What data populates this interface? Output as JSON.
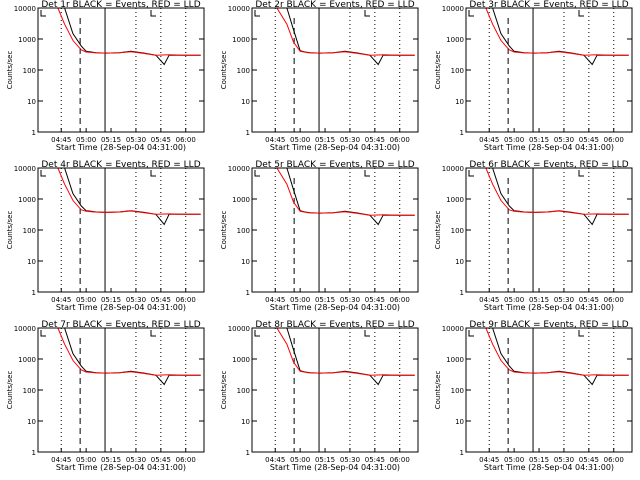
{
  "colors": {
    "events": "#000000",
    "lld": "#ff0000",
    "background": "#ffffff"
  },
  "shared": {
    "ylabel": "Counts/sec",
    "xlabel": "Start Time (28-Sep-04 04:31:00)",
    "yticks": [
      "1",
      "10",
      "100",
      "1000",
      "10000"
    ],
    "xticks": [
      "04:45",
      "05:00",
      "05:15",
      "05:30",
      "05:45",
      "06:00"
    ]
  },
  "chart_data": [
    {
      "type": "line",
      "title": "Det 1r BLACK = Events, RED = LLD",
      "panel": 1,
      "yscale": "log",
      "ylim": [
        1,
        10000
      ],
      "xlim": [
        "04:31",
        "06:11"
      ],
      "series": [
        {
          "name": "Events",
          "x": [
            "04:31",
            "04:40",
            "04:47",
            "04:52",
            "04:57",
            "05:00",
            "05:03",
            "05:06",
            "05:12",
            "05:20",
            "05:27",
            "05:35",
            "05:42",
            "05:47",
            "05:50",
            "06:00",
            "06:09"
          ],
          "y": [
            10000,
            10000,
            10000,
            1500,
            600,
            400,
            380,
            360,
            350,
            360,
            400,
            350,
            300,
            150,
            300,
            300,
            300
          ]
        },
        {
          "name": "LLD",
          "x": [
            "04:31",
            "04:43",
            "04:47",
            "04:52",
            "04:57",
            "05:00",
            "05:05",
            "05:12",
            "05:20",
            "05:27",
            "05:35",
            "05:42",
            "05:50",
            "06:00",
            "06:09"
          ],
          "y": [
            10000,
            10000,
            3000,
            900,
            450,
            380,
            360,
            350,
            360,
            390,
            340,
            300,
            310,
            300,
            300
          ]
        }
      ]
    },
    {
      "type": "line",
      "title": "Det 2r BLACK = Events, RED = LLD",
      "panel": 2,
      "yscale": "log",
      "ylim": [
        1,
        10000
      ],
      "xlim": [
        "04:31",
        "06:11"
      ],
      "series": [
        {
          "name": "Events",
          "x": [
            "04:31",
            "04:45",
            "04:52",
            "04:56",
            "05:00",
            "05:03",
            "05:06",
            "05:12",
            "05:20",
            "05:27",
            "05:35",
            "05:42",
            "05:47",
            "05:50",
            "06:00",
            "06:09"
          ],
          "y": [
            10000,
            10000,
            10000,
            2000,
            420,
            380,
            360,
            350,
            360,
            400,
            350,
            300,
            150,
            300,
            300,
            300
          ]
        },
        {
          "name": "LLD",
          "x": [
            "04:31",
            "04:46",
            "04:52",
            "04:56",
            "05:00",
            "05:05",
            "05:12",
            "05:20",
            "05:27",
            "05:35",
            "05:42",
            "05:50",
            "06:00",
            "06:09"
          ],
          "y": [
            10000,
            10000,
            3000,
            800,
            400,
            360,
            350,
            360,
            390,
            340,
            300,
            310,
            300,
            300
          ]
        }
      ]
    },
    {
      "type": "line",
      "title": "Det 3r BLACK = Events, RED = LLD",
      "panel": 3,
      "yscale": "log",
      "ylim": [
        1,
        10000
      ],
      "xlim": [
        "04:31",
        "06:11"
      ],
      "series": [
        {
          "name": "Events",
          "x": [
            "04:31",
            "04:40",
            "04:47",
            "04:52",
            "04:57",
            "05:00",
            "05:03",
            "05:06",
            "05:12",
            "05:20",
            "05:27",
            "05:35",
            "05:42",
            "05:47",
            "05:50",
            "06:00",
            "06:09"
          ],
          "y": [
            10000,
            10000,
            10000,
            1500,
            600,
            400,
            380,
            360,
            350,
            360,
            400,
            350,
            300,
            150,
            300,
            300,
            300
          ]
        },
        {
          "name": "LLD",
          "x": [
            "04:31",
            "04:43",
            "04:47",
            "04:52",
            "04:57",
            "05:00",
            "05:05",
            "05:12",
            "05:20",
            "05:27",
            "05:35",
            "05:42",
            "05:50",
            "06:00",
            "06:09"
          ],
          "y": [
            10000,
            10000,
            3000,
            900,
            450,
            380,
            360,
            350,
            360,
            390,
            340,
            300,
            310,
            300,
            300
          ]
        }
      ]
    },
    {
      "type": "line",
      "title": "Det 4r BLACK = Events, RED = LLD",
      "panel": 4,
      "yscale": "log",
      "ylim": [
        1,
        10000
      ],
      "xlim": [
        "04:31",
        "06:11"
      ],
      "series": [
        {
          "name": "Events",
          "x": [
            "04:31",
            "04:40",
            "04:47",
            "04:52",
            "04:57",
            "05:00",
            "05:03",
            "05:06",
            "05:12",
            "05:20",
            "05:27",
            "05:35",
            "05:42",
            "05:47",
            "05:50",
            "06:00",
            "06:09"
          ],
          "y": [
            10000,
            10000,
            10000,
            1500,
            600,
            420,
            400,
            380,
            370,
            380,
            420,
            370,
            320,
            150,
            320,
            320,
            320
          ]
        },
        {
          "name": "LLD",
          "x": [
            "04:31",
            "04:43",
            "04:47",
            "04:52",
            "04:57",
            "05:00",
            "05:05",
            "05:12",
            "05:20",
            "05:27",
            "05:35",
            "05:42",
            "05:50",
            "06:00",
            "06:09"
          ],
          "y": [
            10000,
            10000,
            3000,
            900,
            450,
            400,
            380,
            370,
            380,
            410,
            360,
            320,
            330,
            320,
            320
          ]
        }
      ]
    },
    {
      "type": "line",
      "title": "Det 5r BLACK = Events, RED = LLD",
      "panel": 5,
      "yscale": "log",
      "ylim": [
        1,
        10000
      ],
      "xlim": [
        "04:31",
        "06:11"
      ],
      "series": [
        {
          "name": "Events",
          "x": [
            "04:31",
            "04:45",
            "04:52",
            "04:56",
            "05:00",
            "05:03",
            "05:06",
            "05:12",
            "05:20",
            "05:27",
            "05:35",
            "05:42",
            "05:47",
            "05:50",
            "06:00",
            "06:09"
          ],
          "y": [
            10000,
            10000,
            10000,
            2000,
            420,
            380,
            360,
            350,
            360,
            400,
            350,
            300,
            150,
            300,
            300,
            300
          ]
        },
        {
          "name": "LLD",
          "x": [
            "04:31",
            "04:46",
            "04:52",
            "04:56",
            "05:00",
            "05:05",
            "05:12",
            "05:20",
            "05:27",
            "05:35",
            "05:42",
            "05:50",
            "06:00",
            "06:09"
          ],
          "y": [
            10000,
            10000,
            3000,
            800,
            400,
            360,
            350,
            360,
            390,
            340,
            300,
            310,
            300,
            300
          ]
        }
      ]
    },
    {
      "type": "line",
      "title": "Det 6r BLACK = Events, RED = LLD",
      "panel": 6,
      "yscale": "log",
      "ylim": [
        1,
        10000
      ],
      "xlim": [
        "04:31",
        "06:11"
      ],
      "series": [
        {
          "name": "Events",
          "x": [
            "04:31",
            "04:40",
            "04:47",
            "04:52",
            "04:57",
            "05:00",
            "05:03",
            "05:06",
            "05:12",
            "05:20",
            "05:27",
            "05:35",
            "05:42",
            "05:47",
            "05:50",
            "06:00",
            "06:09"
          ],
          "y": [
            10000,
            10000,
            10000,
            1500,
            600,
            420,
            400,
            380,
            370,
            380,
            420,
            370,
            320,
            150,
            320,
            320,
            320
          ]
        },
        {
          "name": "LLD",
          "x": [
            "04:31",
            "04:43",
            "04:47",
            "04:52",
            "04:57",
            "05:00",
            "05:05",
            "05:12",
            "05:20",
            "05:27",
            "05:35",
            "05:42",
            "05:50",
            "06:00",
            "06:09"
          ],
          "y": [
            10000,
            10000,
            3000,
            900,
            450,
            400,
            380,
            370,
            380,
            410,
            360,
            320,
            330,
            320,
            320
          ]
        }
      ]
    },
    {
      "type": "line",
      "title": "Det 7r BLACK = Events, RED = LLD",
      "panel": 7,
      "yscale": "log",
      "ylim": [
        1,
        10000
      ],
      "xlim": [
        "04:31",
        "06:11"
      ],
      "series": [
        {
          "name": "Events",
          "x": [
            "04:31",
            "04:40",
            "04:47",
            "04:52",
            "04:57",
            "05:00",
            "05:03",
            "05:06",
            "05:12",
            "05:20",
            "05:27",
            "05:35",
            "05:42",
            "05:47",
            "05:50",
            "06:00",
            "06:09"
          ],
          "y": [
            10000,
            10000,
            10000,
            1500,
            600,
            400,
            380,
            360,
            350,
            360,
            400,
            350,
            300,
            150,
            300,
            300,
            300
          ]
        },
        {
          "name": "LLD",
          "x": [
            "04:31",
            "04:43",
            "04:47",
            "04:52",
            "04:57",
            "05:00",
            "05:05",
            "05:12",
            "05:20",
            "05:27",
            "05:35",
            "05:42",
            "05:50",
            "06:00",
            "06:09"
          ],
          "y": [
            10000,
            10000,
            3000,
            900,
            450,
            380,
            360,
            350,
            360,
            390,
            340,
            300,
            310,
            300,
            300
          ]
        }
      ]
    },
    {
      "type": "line",
      "title": "Det 8r BLACK = Events, RED = LLD",
      "panel": 8,
      "yscale": "log",
      "ylim": [
        1,
        10000
      ],
      "xlim": [
        "04:31",
        "06:11"
      ],
      "series": [
        {
          "name": "Events",
          "x": [
            "04:31",
            "04:45",
            "04:52",
            "04:56",
            "05:00",
            "05:03",
            "05:06",
            "05:12",
            "05:20",
            "05:27",
            "05:35",
            "05:42",
            "05:47",
            "05:50",
            "06:00",
            "06:09"
          ],
          "y": [
            10000,
            10000,
            10000,
            2000,
            420,
            380,
            360,
            350,
            360,
            400,
            350,
            300,
            150,
            300,
            300,
            300
          ]
        },
        {
          "name": "LLD",
          "x": [
            "04:31",
            "04:46",
            "04:52",
            "04:56",
            "05:00",
            "05:05",
            "05:12",
            "05:20",
            "05:27",
            "05:35",
            "05:42",
            "05:50",
            "06:00",
            "06:09"
          ],
          "y": [
            10000,
            10000,
            3000,
            800,
            400,
            360,
            350,
            360,
            390,
            340,
            300,
            310,
            300,
            300
          ]
        }
      ]
    },
    {
      "type": "line",
      "title": "Det 9r BLACK = Events, RED = LLD",
      "panel": 9,
      "yscale": "log",
      "ylim": [
        1,
        10000
      ],
      "xlim": [
        "04:31",
        "06:11"
      ],
      "series": [
        {
          "name": "Events",
          "x": [
            "04:31",
            "04:40",
            "04:47",
            "04:52",
            "04:57",
            "05:00",
            "05:03",
            "05:06",
            "05:12",
            "05:20",
            "05:27",
            "05:35",
            "05:42",
            "05:47",
            "05:50",
            "06:00",
            "06:09"
          ],
          "y": [
            10000,
            10000,
            10000,
            1500,
            600,
            400,
            380,
            360,
            350,
            360,
            400,
            350,
            300,
            150,
            300,
            300,
            300
          ]
        },
        {
          "name": "LLD",
          "x": [
            "04:31",
            "04:43",
            "04:47",
            "04:52",
            "04:57",
            "05:00",
            "05:05",
            "05:12",
            "05:20",
            "05:27",
            "05:35",
            "05:42",
            "05:50",
            "06:00",
            "06:09"
          ],
          "y": [
            10000,
            10000,
            3000,
            900,
            450,
            380,
            360,
            350,
            360,
            390,
            340,
            300,
            310,
            300,
            300
          ]
        }
      ]
    }
  ]
}
